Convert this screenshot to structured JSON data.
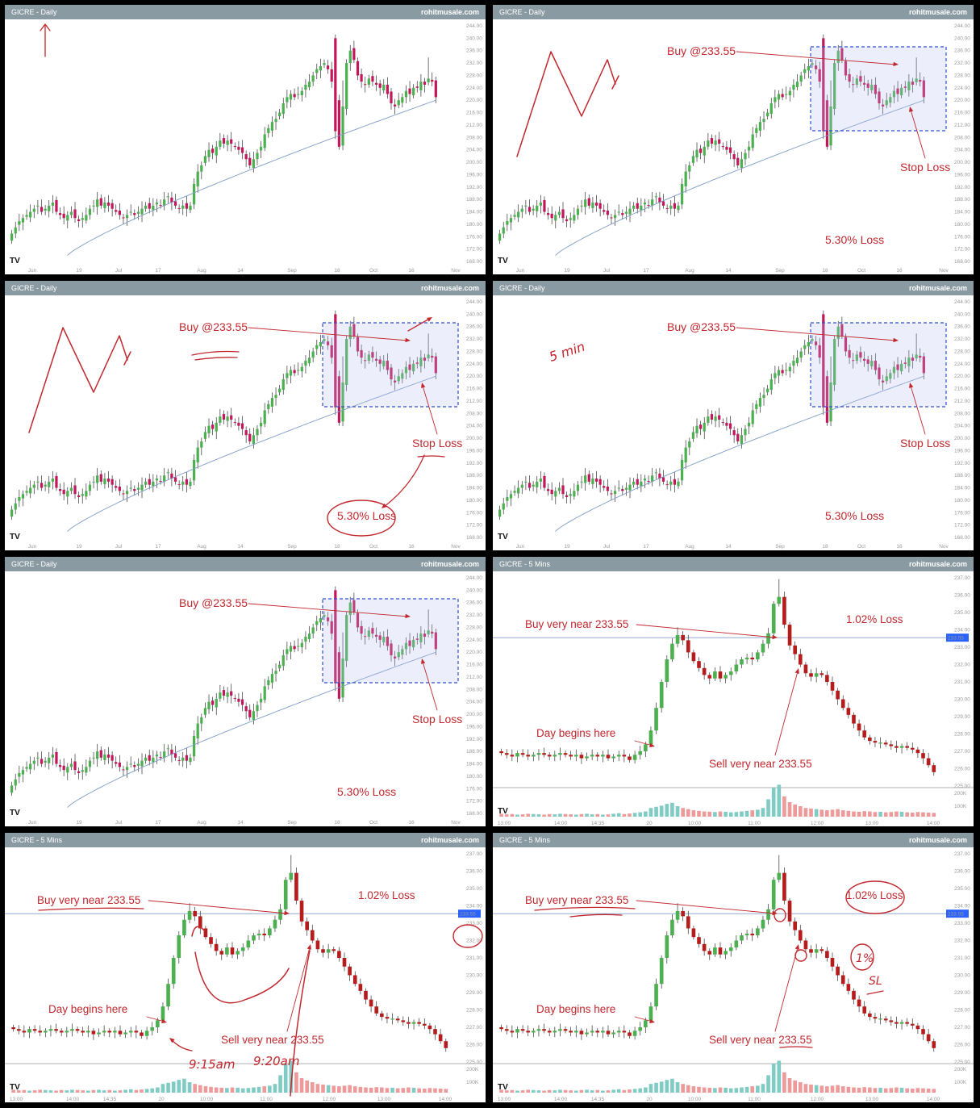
{
  "panels": [
    {
      "id": "p1",
      "symbol": "GICRE - Daily",
      "site": "rohitmusale.com",
      "kind": "daily",
      "box": false,
      "buy_label": "",
      "stop_label": "",
      "loss_label": "",
      "hand": "arrow-up"
    },
    {
      "id": "p2",
      "symbol": "GICRE - Daily",
      "site": "rohitmusale.com",
      "kind": "daily",
      "box": true,
      "buy_label": "Buy @233.55",
      "stop_label": "Stop Loss",
      "loss_label": "5.30% Loss",
      "hand": "zigzag"
    },
    {
      "id": "p3",
      "symbol": "GICRE - Daily",
      "site": "rohitmusale.com",
      "kind": "daily",
      "box": true,
      "buy_label": "Buy @233.55",
      "stop_label": "Stop Loss",
      "loss_label": "5.30% Loss",
      "hand": "zigzag-circle"
    },
    {
      "id": "p4",
      "symbol": "GICRE - Daily",
      "site": "rohitmusale.com",
      "kind": "daily",
      "box": true,
      "buy_label": "Buy @233.55",
      "stop_label": "Stop Loss",
      "loss_label": "5.30% Loss",
      "hand": "5min",
      "hand_text": "5 min"
    },
    {
      "id": "p5",
      "symbol": "GICRE - Daily",
      "site": "rohitmusale.com",
      "kind": "daily",
      "box": true,
      "buy_label": "Buy @233.55",
      "stop_label": "Stop Loss",
      "loss_label": "5.30% Loss",
      "hand": "none"
    },
    {
      "id": "p6",
      "symbol": "GICRE - 5 Mins",
      "site": "rohitmusale.com",
      "kind": "intraday",
      "buy_label": "Buy very near 233.55",
      "sell_label": "Sell very near 233.55",
      "day_label": "Day begins here",
      "loss_label": "1.02% Loss",
      "price_tag": "233.55",
      "hand": "none"
    },
    {
      "id": "p7",
      "symbol": "GICRE - 5 Mins",
      "site": "rohitmusale.com",
      "kind": "intraday",
      "buy_label": "Buy very near 233.55",
      "sell_label": "Sell very near 233.55",
      "day_label": "Day begins here",
      "loss_label": "1.02% Loss",
      "price_tag": "233.55",
      "hand": "times",
      "hand_text1": "9:15am",
      "hand_text2": "9:20am"
    },
    {
      "id": "p8",
      "symbol": "GICRE - 5 Mins",
      "site": "rohitmusale.com",
      "kind": "intraday",
      "buy_label": "Buy very near 233.55",
      "sell_label": "Sell very near 233.55",
      "day_label": "Day begins here",
      "loss_label": "1.02% Loss",
      "price_tag": "233.55",
      "hand": "percent",
      "hand_text1": "1%",
      "hand_text2": "SL"
    }
  ],
  "chart_data": [
    {
      "type": "candlestick",
      "title": "GICRE - Daily",
      "ylim": [
        168,
        244
      ],
      "y_ticks": [
        "244.00",
        "240.00",
        "236.00",
        "232.00",
        "228.00",
        "224.00",
        "220.00",
        "216.00",
        "212.00",
        "208.00",
        "204.00",
        "200.00",
        "196.00",
        "192.00",
        "188.00",
        "184.00",
        "180.00",
        "176.00",
        "172.00",
        "168.00"
      ],
      "x_ticks": [
        "Jun",
        "19",
        "Jul",
        "17",
        "Aug",
        "14",
        "Sep",
        "18",
        "Oct",
        "16",
        "Nov"
      ],
      "close": [
        177,
        179,
        181,
        182,
        183,
        184,
        185,
        186,
        184,
        185,
        186,
        187,
        184,
        183,
        182,
        183,
        184,
        182,
        181,
        182,
        183,
        185,
        186,
        188,
        186,
        187,
        186,
        185,
        184,
        183,
        182,
        183,
        184,
        183,
        184,
        185,
        186,
        185,
        186,
        187,
        186,
        188,
        189,
        187,
        186,
        185,
        186,
        185,
        186,
        193,
        197,
        199,
        202,
        204,
        203,
        205,
        207,
        206,
        207,
        206,
        205,
        204,
        203,
        201,
        199,
        201,
        203,
        205,
        209,
        211,
        213,
        214,
        216,
        219,
        221,
        222,
        221,
        222,
        223,
        225,
        226,
        228,
        230,
        231,
        232,
        230,
        226,
        210,
        205,
        218,
        232,
        236,
        233,
        228,
        226,
        225,
        227,
        226,
        225,
        224,
        225,
        222,
        219,
        218,
        220,
        221,
        223,
        222,
        224,
        224,
        226,
        225,
        227,
        226,
        221
      ],
      "ma_start": 170,
      "ma_end": 220
    },
    {
      "type": "candlestick",
      "title": "GICRE - 5 Mins",
      "ylim": [
        225,
        237
      ],
      "y_ticks": [
        "237.00",
        "236.00",
        "235.00",
        "234.00",
        "233.00",
        "232.00",
        "231.00",
        "230.00",
        "229.00",
        "228.00",
        "227.00",
        "226.00",
        "225.00"
      ],
      "x_ticks": [
        "13:00",
        "14:00",
        "14:35",
        "20",
        "10:00",
        "11:00",
        "12:00",
        "13:00",
        "14:00"
      ],
      "reference_line": 233.55,
      "volume_ticks": [
        "200K",
        "100K"
      ],
      "close": [
        226.9,
        226.8,
        226.7,
        226.9,
        226.8,
        226.7,
        226.8,
        226.9,
        226.8,
        226.7,
        226.8,
        226.9,
        226.8,
        226.7,
        226.8,
        226.6,
        226.7,
        226.8,
        226.7,
        226.8,
        226.6,
        226.7,
        226.8,
        226.7,
        226.5,
        226.8,
        227.0,
        227.4,
        228.2,
        229.5,
        231.0,
        232.3,
        233.2,
        233.7,
        233.4,
        232.7,
        232.2,
        231.8,
        231.4,
        231.2,
        231.6,
        231.2,
        231.4,
        231.6,
        232.0,
        232.3,
        232.4,
        232.3,
        232.7,
        233.2,
        233.8,
        235.5,
        235.9,
        234.3,
        233.1,
        232.6,
        232.0,
        231.5,
        231.3,
        231.5,
        231.4,
        231.0,
        230.5,
        230.0,
        229.5,
        229.1,
        228.6,
        228.2,
        227.8,
        227.6,
        227.5,
        227.5,
        227.4,
        227.3,
        227.2,
        227.3,
        227.2,
        227.1,
        226.9,
        226.6,
        226.2,
        225.8
      ],
      "volume": [
        10,
        8,
        9,
        7,
        8,
        10,
        9,
        8,
        7,
        9,
        8,
        10,
        9,
        8,
        7,
        9,
        10,
        8,
        9,
        7,
        8,
        10,
        12,
        9,
        11,
        13,
        15,
        18,
        30,
        34,
        38,
        44,
        48,
        36,
        30,
        26,
        22,
        20,
        18,
        17,
        16,
        18,
        17,
        15,
        16,
        18,
        20,
        22,
        24,
        30,
        60,
        100,
        110,
        70,
        50,
        42,
        36,
        30,
        28,
        26,
        24,
        22,
        24,
        26,
        22,
        20,
        18,
        17,
        19,
        18,
        16,
        17,
        15,
        16,
        18,
        17,
        15,
        14,
        16,
        15,
        14,
        13
      ]
    }
  ]
}
